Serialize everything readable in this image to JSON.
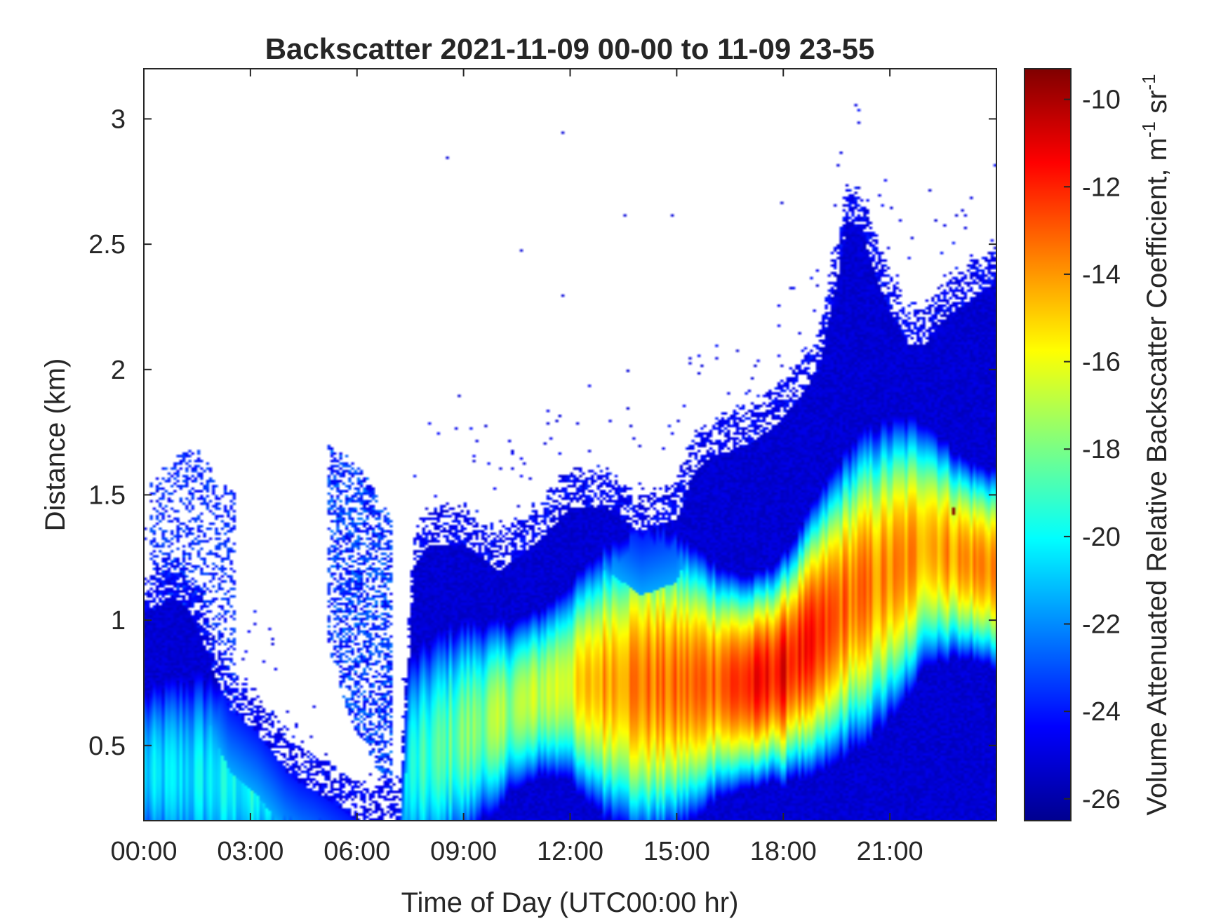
{
  "chart_data": {
    "type": "heatmap",
    "title": "Backscatter 2021-11-09 00-00 to 11-09 23-55",
    "xlabel": "Time of Day (UTC00:00 hr)",
    "ylabel": "Distance (km)",
    "colorbar_label": "Volume Attenuated Relative Backscatter Coefficient, m",
    "colorbar_label_sup1": "-1",
    "colorbar_label_mid": " sr",
    "colorbar_label_sup2": "-1",
    "colormap": "jet",
    "xlim_hours": [
      0,
      24
    ],
    "ylim": [
      0.2,
      3.2
    ],
    "clim": [
      -26.5,
      -9.3
    ],
    "x_ticks": [
      {
        "value": 0,
        "label": "00:00"
      },
      {
        "value": 3,
        "label": "03:00"
      },
      {
        "value": 6,
        "label": "06:00"
      },
      {
        "value": 9,
        "label": "09:00"
      },
      {
        "value": 12,
        "label": "12:00"
      },
      {
        "value": 15,
        "label": "15:00"
      },
      {
        "value": 18,
        "label": "18:00"
      },
      {
        "value": 21,
        "label": "21:00"
      }
    ],
    "y_ticks": [
      {
        "value": 0.5,
        "label": "0.5"
      },
      {
        "value": 1,
        "label": "1"
      },
      {
        "value": 1.5,
        "label": "1.5"
      },
      {
        "value": 2,
        "label": "2"
      },
      {
        "value": 2.5,
        "label": "2.5"
      },
      {
        "value": 3,
        "label": "3"
      }
    ],
    "colorbar_ticks": [
      {
        "value": -26,
        "label": "-26"
      },
      {
        "value": -24,
        "label": "-24"
      },
      {
        "value": -22,
        "label": "-22"
      },
      {
        "value": -20,
        "label": "-20"
      },
      {
        "value": -18,
        "label": "-18"
      },
      {
        "value": -16,
        "label": "-16"
      },
      {
        "value": -14,
        "label": "-14"
      },
      {
        "value": -12,
        "label": "-12"
      },
      {
        "value": -10,
        "label": "-10"
      }
    ],
    "signal_top_km": {
      "hours": [
        0,
        0.4,
        0.8,
        1.2,
        1.6,
        2.0,
        2.4,
        2.8,
        3.2,
        3.6,
        4.0,
        4.4,
        4.8,
        5.2,
        5.6,
        6.0,
        6.4,
        6.8,
        7.2,
        7.6,
        8.0,
        9.0,
        10.0,
        11.0,
        12.0,
        13.0,
        14.0,
        15.0,
        15.5,
        16.0,
        17.0,
        18.0,
        19.0,
        19.5,
        19.8,
        20.2,
        20.8,
        21.5,
        22.0,
        22.5,
        23.0,
        23.5,
        24.0
      ],
      "km": [
        1.03,
        1.05,
        1.1,
        1.05,
        0.95,
        0.78,
        0.65,
        0.6,
        0.55,
        0.48,
        0.4,
        0.35,
        0.32,
        0.28,
        0.24,
        0.2,
        0.2,
        0.2,
        0.2,
        1.2,
        1.3,
        1.3,
        1.2,
        1.3,
        1.45,
        1.45,
        1.35,
        1.4,
        1.6,
        1.65,
        1.7,
        1.8,
        2.0,
        2.35,
        2.6,
        2.55,
        2.3,
        2.1,
        2.1,
        2.2,
        2.25,
        2.3,
        2.35
      ]
    },
    "residual_layer_top_km": {
      "hours": [
        0.2,
        0.8,
        1.4,
        2.0,
        2.6
      ],
      "km": [
        1.55,
        1.65,
        1.7,
        1.6,
        1.5
      ]
    },
    "elevated_layer_km": {
      "hours": [
        5.2,
        5.8,
        6.4,
        7.0
      ],
      "km_top": [
        1.7,
        1.65,
        1.55,
        1.4
      ],
      "km_bottom": [
        0.9,
        0.6,
        0.45,
        0.3
      ]
    },
    "aerosol_max": {
      "hours": [
        0,
        3,
        6,
        9,
        11,
        12,
        13,
        14,
        15,
        16,
        17,
        18,
        19,
        20,
        21,
        22,
        23,
        24
      ],
      "km": [
        0.4,
        0.35,
        0.3,
        0.55,
        0.7,
        0.75,
        0.75,
        0.75,
        0.75,
        0.75,
        0.75,
        0.8,
        0.95,
        1.1,
        1.2,
        1.3,
        1.25,
        1.2
      ],
      "value_db": [
        -21,
        -20,
        -22,
        -18,
        -17,
        -16,
        -14,
        -13.5,
        -13.5,
        -13,
        -12,
        -11.5,
        -12.5,
        -13.5,
        -14,
        -14,
        -14,
        -13.5
      ]
    },
    "sparse_pixels": [
      {
        "hour": 11.75,
        "km": 2.95
      },
      {
        "hour": 8.5,
        "km": 2.85
      },
      {
        "hour": 10.6,
        "km": 2.48
      },
      {
        "hour": 13.5,
        "km": 2.62
      },
      {
        "hour": 14.9,
        "km": 2.62
      },
      {
        "hour": 11.8,
        "km": 2.3
      },
      {
        "hour": 17.95,
        "km": 2.67
      },
      {
        "hour": 22.1,
        "km": 2.72
      },
      {
        "hour": 22.3,
        "km": 2.6
      },
      {
        "hour": 22.9,
        "km": 2.62
      },
      {
        "hour": 13.6,
        "km": 2.0
      },
      {
        "hour": 8.85,
        "km": 1.9
      },
      {
        "hour": 9.6,
        "km": 1.78
      },
      {
        "hour": 10.4,
        "km": 1.68
      },
      {
        "hour": 16.7,
        "km": 2.08
      },
      {
        "hour": 15.7,
        "km": 2.02
      },
      {
        "hour": 17.2,
        "km": 2.02
      },
      {
        "hour": 13.6,
        "km": 1.85
      }
    ],
    "max_spot": {
      "hour": 22.75,
      "km": 1.43,
      "value_db": -9.3
    }
  }
}
